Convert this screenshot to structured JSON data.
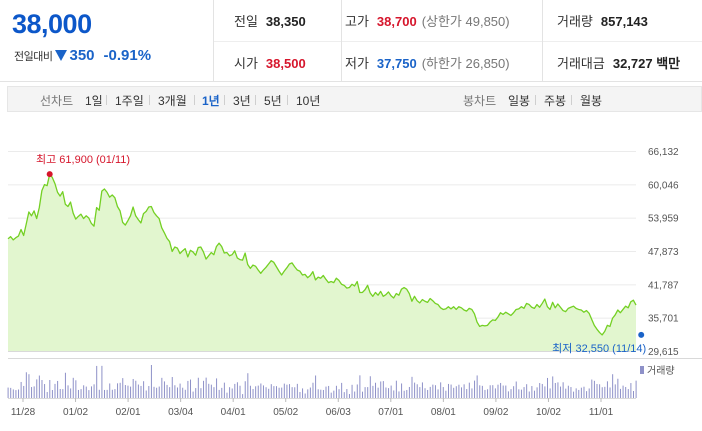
{
  "quote": {
    "price": "38,000",
    "change_label": "전일대비",
    "change_value": "350",
    "change_pct": "-0.91%",
    "prev_close": {
      "label": "전일",
      "value": "38,350"
    },
    "high": {
      "label": "고가",
      "value": "38,700",
      "sub": "(상한가 49,850)"
    },
    "volume": {
      "label": "거래량",
      "value": "857,143"
    },
    "open": {
      "label": "시가",
      "value": "38,500"
    },
    "low": {
      "label": "저가",
      "value": "37,750",
      "sub": "(하한가 26,850)"
    },
    "amount": {
      "label": "거래대금",
      "value": "32,727 백만"
    },
    "colors": {
      "up": "#d6162c",
      "down": "#1a63c8"
    }
  },
  "period_bar": {
    "line_title": "선차트",
    "line_periods": [
      "1일",
      "1주일",
      "3개월",
      "1년",
      "3년",
      "5년",
      "10년"
    ],
    "active_period": "1년",
    "candle_title": "봉차트",
    "candle_periods": [
      "일봉",
      "주봉",
      "월봉"
    ]
  },
  "chart_data": {
    "type": "area",
    "y_ticks": [
      "66,132",
      "60,046",
      "53,959",
      "47,873",
      "41,787",
      "35,701",
      "29,615"
    ],
    "ylim": [
      29615,
      66132
    ],
    "x_ticks": [
      "11/28",
      "01/02",
      "02/01",
      "03/04",
      "04/01",
      "05/02",
      "06/03",
      "07/01",
      "08/01",
      "09/02",
      "10/02",
      "11/01"
    ],
    "grid": true,
    "series_color": "#74d024",
    "fill_color": "#e2f6cf",
    "high_annotation": {
      "text": "최고 61,900 (01/11)",
      "value": 61900,
      "index": 16,
      "color": "#d6162c"
    },
    "low_annotation": {
      "text": "최저 32,550 (11/14)",
      "value": 32550,
      "index": 243,
      "color": "#1a63c8"
    },
    "volume_label": "거래량",
    "volume_color": "#8e91c8",
    "values": [
      50100,
      50500,
      49900,
      50300,
      50600,
      51800,
      50700,
      52800,
      55000,
      54300,
      55200,
      53800,
      55800,
      58900,
      60000,
      59800,
      61900,
      61300,
      60200,
      58600,
      57900,
      58700,
      56400,
      56000,
      56800,
      54800,
      53700,
      54200,
      54600,
      53800,
      54300,
      53900,
      52900,
      52400,
      55800,
      55300,
      58800,
      59200,
      58600,
      57700,
      58100,
      57600,
      56000,
      55200,
      53100,
      52600,
      53400,
      54300,
      55900,
      54300,
      53600,
      53000,
      54700,
      55100,
      55900,
      56000,
      54900,
      54300,
      53800,
      52100,
      51200,
      50200,
      49600,
      47800,
      48600,
      48400,
      47400,
      47900,
      48300,
      46800,
      48000,
      47700,
      47100,
      48500,
      48600,
      47700,
      46400,
      47000,
      47600,
      47200,
      48700,
      49300,
      48700,
      47500,
      47600,
      47000,
      47200,
      47900,
      46600,
      46300,
      46200,
      47500,
      45400,
      44700,
      45300,
      45100,
      44400,
      43800,
      44400,
      44900,
      45500,
      46100,
      45800,
      45000,
      44200,
      43500,
      44200,
      44800,
      45500,
      45700,
      45000,
      44400,
      44200,
      43500,
      43600,
      43000,
      43400,
      44100,
      42600,
      43100,
      42900,
      43400,
      42700,
      42100,
      42300,
      42100,
      42900,
      42500,
      41800,
      41600,
      41100,
      41200,
      41800,
      41500,
      42300,
      40300,
      40300,
      40800,
      41600,
      40200,
      39600,
      40300,
      39800,
      40500,
      39600,
      39900,
      40400,
      39700,
      39300,
      40100,
      39800,
      40900,
      41200,
      40900,
      40100,
      38700,
      39600,
      38800,
      38400,
      39000,
      38700,
      38500,
      39200,
      38800,
      38300,
      38100,
      37500,
      37200,
      37300,
      37700,
      37300,
      37700,
      37200,
      37700,
      37500,
      37100,
      36900,
      37400,
      37200,
      36400,
      34900,
      34100,
      34300,
      34200,
      34300,
      34900,
      35300,
      35200,
      35800,
      36600,
      36300,
      36700,
      36400,
      36100,
      36600,
      37200,
      37300,
      37700,
      37400,
      38300,
      38100,
      37600,
      37400,
      38100,
      37600,
      38300,
      39100,
      37700,
      37200,
      38500,
      37500,
      38200,
      37600,
      37000,
      36800,
      37400,
      37600,
      37800,
      37400,
      37200,
      37100,
      36700,
      37000,
      36500,
      35400,
      34300,
      33600,
      33000,
      32550,
      33200,
      34300,
      34100,
      35600,
      36200,
      37100,
      36600,
      37200,
      37800,
      37500,
      38600,
      38900,
      38000
    ]
  }
}
